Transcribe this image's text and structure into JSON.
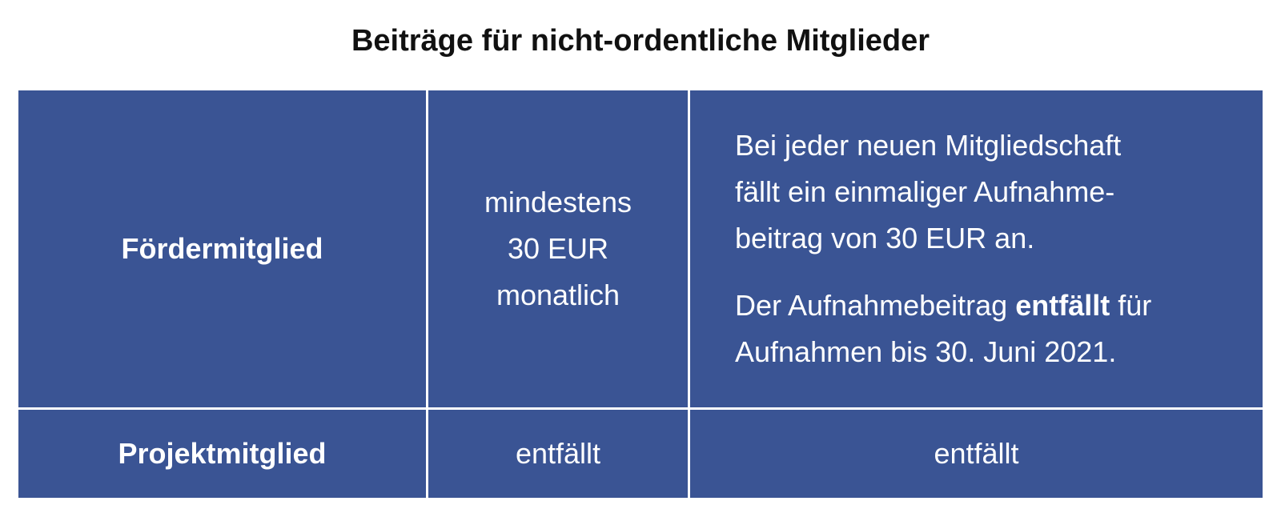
{
  "title": "Beiträge für nicht-ordentliche Mitglieder",
  "rows": [
    {
      "type": "Fördermitglied",
      "fee_lines": [
        "mindestens",
        "30 EUR",
        "monatlich"
      ],
      "note": {
        "para1_lines": [
          "Bei jeder neuen Mitgliedschaft",
          "fällt ein einmaliger Aufnahme-",
          "beitrag von 30 EUR an."
        ],
        "para2_line1_before": "Der Aufnahmebeitrag ",
        "para2_line1_bold": "entfällt",
        "para2_line1_after": " für",
        "para2_line2": "Aufnahmen bis 30. Juni 2021."
      }
    },
    {
      "type": "Projektmitglied",
      "fee": "entfällt",
      "note": "entfällt"
    }
  ]
}
